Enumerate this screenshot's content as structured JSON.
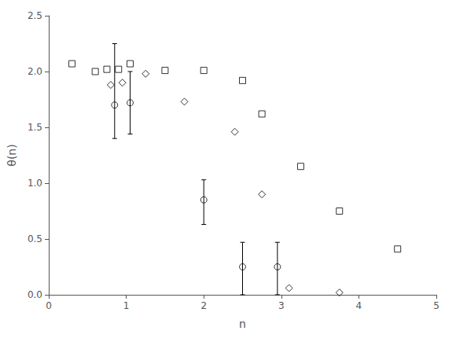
{
  "chart_data": {
    "type": "scatter",
    "xlabel": "n",
    "ylabel": "θ(n)",
    "xlim": [
      0,
      5
    ],
    "ylim": [
      0,
      2.5
    ],
    "xticks": [
      0,
      1,
      2,
      3,
      4,
      5
    ],
    "yticks": [
      {
        "value": 0,
        "label": "0.0"
      },
      0.5,
      {
        "value": 1.0,
        "label": "1.0"
      },
      1.5,
      {
        "value": 2.0,
        "label": "2.0"
      },
      2.5
    ],
    "grid": false,
    "series": [
      {
        "marker": "square",
        "color": "#000000",
        "x": [
          0.3,
          0.6,
          0.75,
          0.9,
          1.05,
          1.5,
          2.0,
          2.5,
          2.75,
          3.25,
          3.75,
          4.5
        ],
        "values": [
          2.07,
          2.0,
          2.02,
          2.02,
          2.07,
          2.01,
          2.01,
          1.92,
          1.62,
          1.15,
          0.75,
          0.41
        ]
      },
      {
        "marker": "diamond",
        "color": "#000000",
        "x": [
          0.8,
          0.95,
          1.25,
          1.75,
          2.4,
          2.75,
          3.1,
          3.75
        ],
        "values": [
          1.88,
          1.9,
          1.98,
          1.73,
          1.46,
          0.9,
          0.06,
          0.02
        ]
      },
      {
        "marker": "circle",
        "color": "#000000",
        "x": [
          0.85,
          1.05,
          2.0,
          2.5,
          2.95
        ],
        "values": [
          1.7,
          1.72,
          0.85,
          0.25,
          0.25
        ],
        "yerr_lo": [
          0.3,
          0.28,
          0.22,
          0.25,
          0.25
        ],
        "yerr_hi": [
          0.55,
          0.28,
          0.18,
          0.22,
          0.22
        ]
      }
    ]
  }
}
